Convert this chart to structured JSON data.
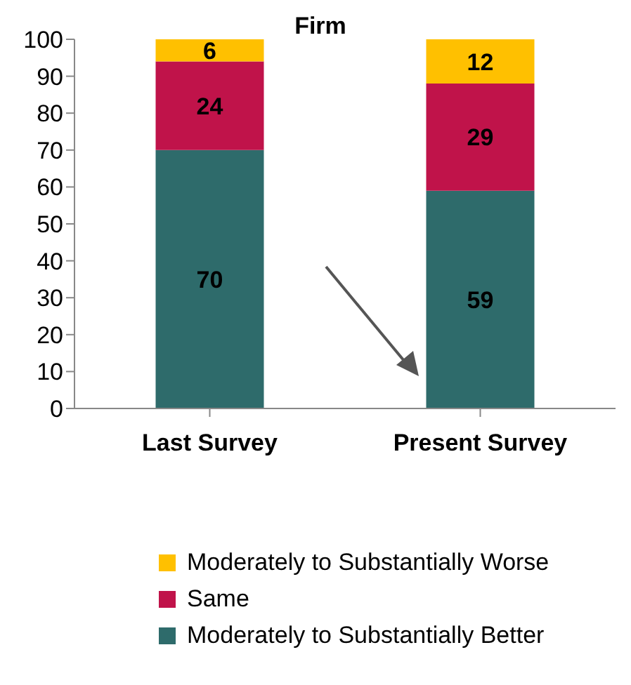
{
  "chart_data": {
    "type": "bar",
    "title": "Firm",
    "stacked": true,
    "categories": [
      "Last Survey",
      "Present Survey"
    ],
    "series": [
      {
        "name": "Moderately to Substantially Better",
        "color": "#2e6b6b",
        "values": [
          70,
          59
        ]
      },
      {
        "name": "Same",
        "color": "#c0134a",
        "values": [
          24,
          29
        ]
      },
      {
        "name": "Moderately to Substantially Worse",
        "color": "#ffc000",
        "values": [
          6,
          12
        ]
      }
    ],
    "ylim": [
      0,
      100
    ],
    "yticks": [
      0,
      10,
      20,
      30,
      40,
      50,
      60,
      70,
      80,
      90,
      100
    ],
    "grid": false,
    "legend": "bottom",
    "data_labels": true
  }
}
